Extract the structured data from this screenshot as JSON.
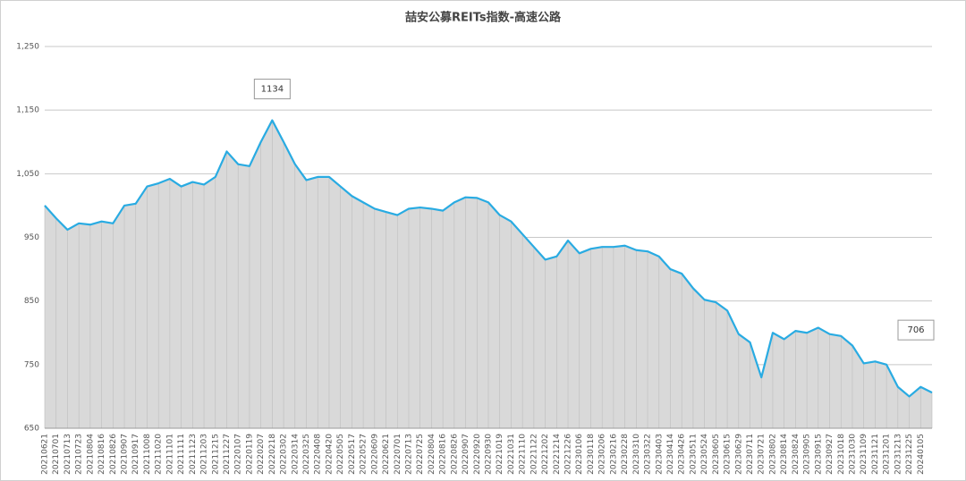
{
  "chart_data": {
    "type": "area-line",
    "title": "喆安公募REITs指数-高速公路",
    "categories": [
      "20210621",
      "20210701",
      "20210713",
      "20210723",
      "20210804",
      "20210816",
      "20210826",
      "20210907",
      "20210917",
      "20211008",
      "20211020",
      "20211101",
      "20211111",
      "20211123",
      "20211203",
      "20211215",
      "20211227",
      "20220107",
      "20220119",
      "20220207",
      "20220218",
      "20220302",
      "20220314",
      "20220325",
      "20220408",
      "20220420",
      "20220505",
      "20220517",
      "20220527",
      "20220609",
      "20220621",
      "20220701",
      "20220713",
      "20220725",
      "20220804",
      "20220816",
      "20220826",
      "20220907",
      "20220920",
      "20220930",
      "20221019",
      "20221031",
      "20221110",
      "20221122",
      "20221202",
      "20221214",
      "20221226",
      "20230106",
      "20230118",
      "20230206",
      "20230216",
      "20230228",
      "20230310",
      "20230322",
      "20230403",
      "20230414",
      "20230426",
      "20230511",
      "20230524",
      "20230605",
      "20230615",
      "20230629",
      "20230711",
      "20230721",
      "20230802",
      "20230814",
      "20230824",
      "20230905",
      "20230915",
      "20230927",
      "20231018",
      "20231030",
      "20231109",
      "20231121",
      "20231201",
      "20231213",
      "20231225",
      "20240105",
      null
    ],
    "series": [
      {
        "name": "喆安公募REITs指数-高速公路",
        "color": "#29abe2",
        "fill": "#d9d9d9",
        "values": [
          1000,
          980,
          962,
          972,
          970,
          975,
          972,
          1000,
          1003,
          1030,
          1035,
          1042,
          1030,
          1037,
          1033,
          1045,
          1085,
          1065,
          1062,
          1100,
          1134,
          1100,
          1065,
          1040,
          1045,
          1045,
          1030,
          1015,
          1005,
          995,
          990,
          985,
          995,
          997,
          995,
          992,
          1005,
          1013,
          1012,
          1005,
          985,
          975,
          955,
          935,
          915,
          920,
          945,
          925,
          932,
          935,
          935,
          937,
          930,
          928,
          920,
          900,
          893,
          870,
          852,
          848,
          835,
          798,
          785,
          730,
          800,
          790,
          803,
          800,
          808,
          798,
          795,
          780,
          752,
          755,
          750,
          715,
          700,
          715,
          706
        ]
      }
    ],
    "ylim": [
      650,
      1250
    ],
    "yticks": [
      650,
      750,
      850,
      950,
      {
        "value": 1050,
        "label": "1,050"
      },
      {
        "value": 1150,
        "label": "1,150"
      },
      {
        "value": 1250,
        "label": "1,250"
      }
    ],
    "grid": true,
    "data_labels": "max-and-last"
  }
}
